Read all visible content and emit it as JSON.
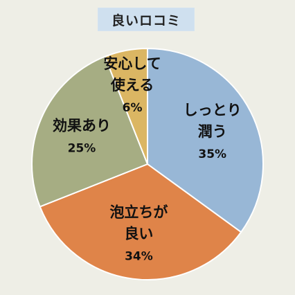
{
  "chart_data": {
    "type": "pie",
    "title": "良いロコミ",
    "slices": [
      {
        "label_lines": [
          "しっとり",
          "潤う"
        ],
        "value": 35,
        "value_label": "35%",
        "color": "#98b7d6"
      },
      {
        "label_lines": [
          "泡立ちが",
          "良い"
        ],
        "value": 34,
        "value_label": "34%",
        "color": "#df8449"
      },
      {
        "label_lines": [
          "効果あり"
        ],
        "value": 25,
        "value_label": "25%",
        "color": "#a6ad83"
      },
      {
        "label_lines": [
          "安心して",
          "使える"
        ],
        "value": 6,
        "value_label": "6%",
        "color": "#dbb663"
      }
    ],
    "start_angle_deg": 0,
    "direction": "clockwise",
    "legend": "none"
  }
}
